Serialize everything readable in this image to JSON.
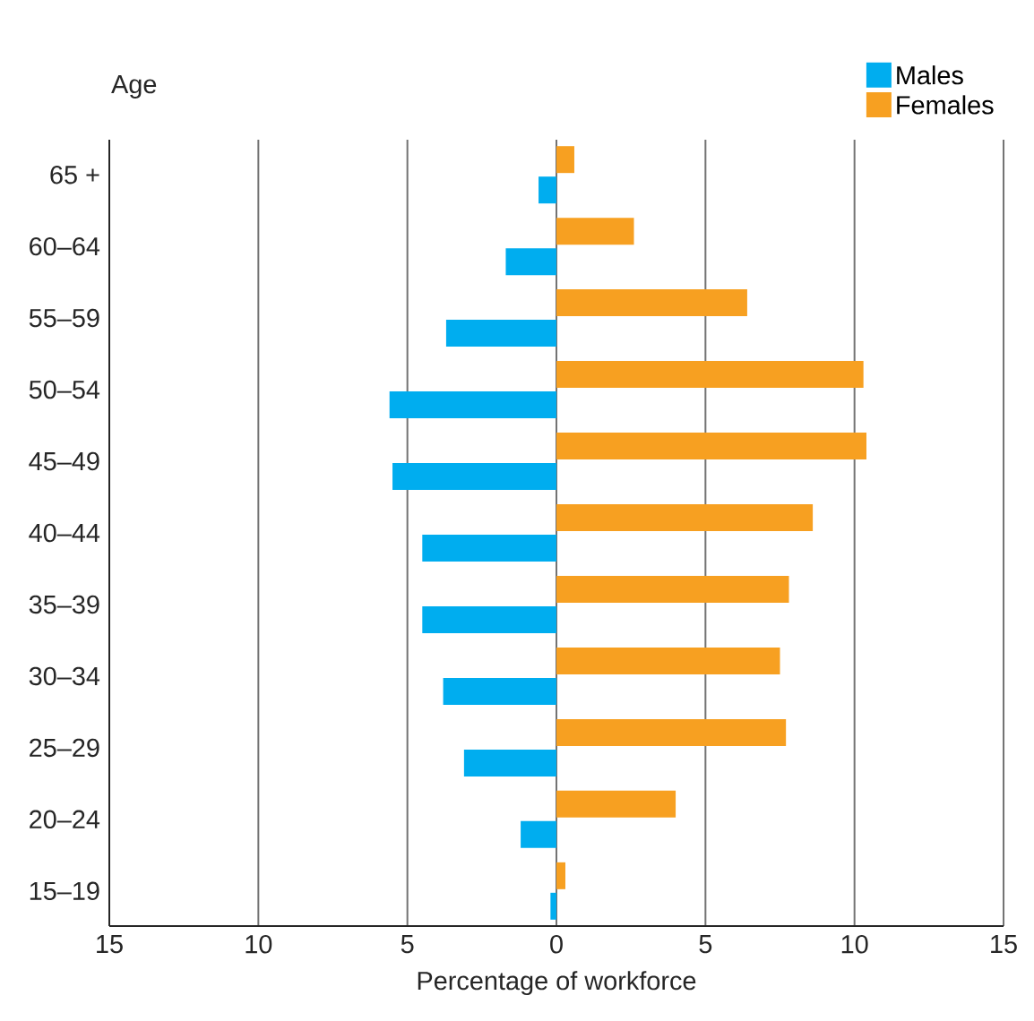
{
  "chart_data": {
    "type": "bar",
    "orientation": "horizontal",
    "ylabel": "Age",
    "xlabel": "Percentage of workforce",
    "categories": [
      "65 +",
      "60–64",
      "55–59",
      "50–54",
      "45–49",
      "40–44",
      "35–39",
      "30–34",
      "25–29",
      "20–24",
      "15–19"
    ],
    "series": [
      {
        "name": "Males",
        "color": "#00adef",
        "values": [
          -0.6,
          -1.7,
          -3.7,
          -5.6,
          -5.5,
          -4.5,
          -4.5,
          -3.8,
          -3.1,
          -1.2,
          -0.2
        ]
      },
      {
        "name": "Females",
        "color": "#f7a021",
        "values": [
          0.6,
          2.6,
          6.4,
          10.3,
          10.4,
          8.6,
          7.8,
          7.5,
          7.7,
          4.0,
          0.3
        ]
      }
    ],
    "xlim": [
      -15,
      15
    ],
    "xticks": [
      {
        "value": -15,
        "label": "15"
      },
      {
        "value": -10,
        "label": "10"
      },
      {
        "value": -5,
        "label": "5"
      },
      0,
      5,
      10,
      15
    ],
    "grid": "x",
    "legend": "top right"
  }
}
